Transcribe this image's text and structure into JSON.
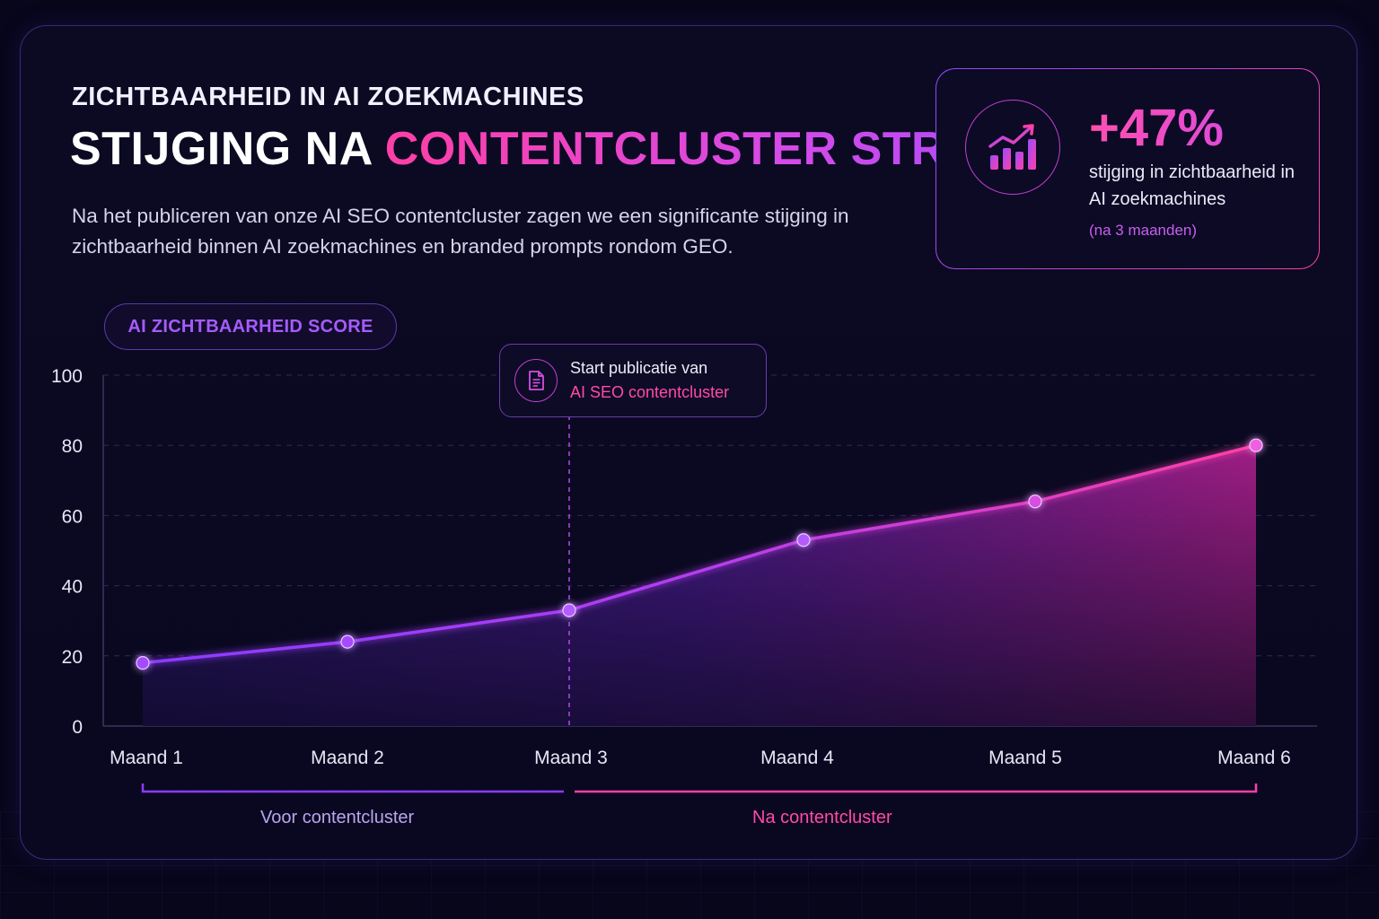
{
  "header": {
    "eyebrow": "ZICHTBAARHEID IN AI ZOEKMACHINES",
    "title_part1": "STIJGING NA ",
    "title_part2": "CONTENTCLUSTER STRATEGIE",
    "description": "Na het publiceren van onze AI SEO contentcluster zagen we een significante stijging in zichtbaarheid binnen AI zoekmachines en branded prompts rondom GEO."
  },
  "stat": {
    "icon": "growth-chart-icon",
    "value": "+47%",
    "text": "stijging in zichtbaarheid in AI zoekmachines",
    "note": "(na 3 maanden)"
  },
  "annotation": {
    "icon": "document-icon",
    "line1": "Start publicatie van",
    "line2": "AI SEO contentcluster"
  },
  "periods": {
    "before": "Voor contentcluster",
    "after": "Na contentcluster"
  },
  "colors": {
    "purple": "#8b3bff",
    "magenta": "#ff3fa6",
    "background": "#07061a"
  },
  "chart_data": {
    "type": "area",
    "title": "AI ZICHTBAARHEID SCORE",
    "categories": [
      "Maand 1",
      "Maand 2",
      "Maand 3",
      "Maand 4",
      "Maand 5",
      "Maand 6"
    ],
    "values": [
      18,
      24,
      33,
      53,
      64,
      80
    ],
    "ylim": [
      0,
      100
    ],
    "yticks": [
      0,
      20,
      40,
      60,
      80,
      100
    ],
    "grid": true,
    "event_marker": {
      "category": "Maand 3",
      "label": "Start publicatie van AI SEO contentcluster"
    }
  }
}
